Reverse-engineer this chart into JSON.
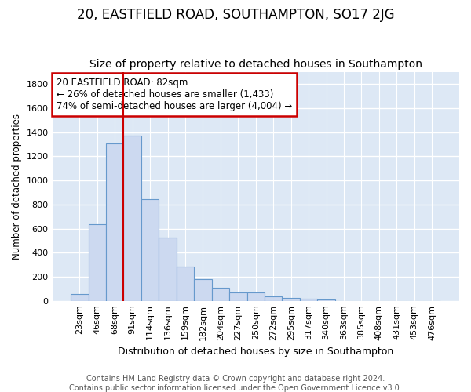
{
  "title": "20, EASTFIELD ROAD, SOUTHAMPTON, SO17 2JG",
  "subtitle": "Size of property relative to detached houses in Southampton",
  "xlabel": "Distribution of detached houses by size in Southampton",
  "ylabel": "Number of detached properties",
  "footnote1": "Contains HM Land Registry data © Crown copyright and database right 2024.",
  "footnote2": "Contains public sector information licensed under the Open Government Licence v3.0.",
  "bar_color": "#ccd9f0",
  "bar_edge_color": "#6699cc",
  "background_color": "#dde8f5",
  "fig_background": "#ffffff",
  "grid_color": "#ffffff",
  "vline_color": "#cc0000",
  "annotation_box_edge": "#cc0000",
  "annotation_text_line1": "20 EASTFIELD ROAD: 82sqm",
  "annotation_text_line2": "← 26% of detached houses are smaller (1,433)",
  "annotation_text_line3": "74% of semi-detached houses are larger (4,004) →",
  "bins": [
    "23sqm",
    "46sqm",
    "68sqm",
    "91sqm",
    "114sqm",
    "136sqm",
    "159sqm",
    "182sqm",
    "204sqm",
    "227sqm",
    "250sqm",
    "272sqm",
    "295sqm",
    "317sqm",
    "340sqm",
    "363sqm",
    "385sqm",
    "408sqm",
    "431sqm",
    "453sqm",
    "476sqm"
  ],
  "values": [
    57,
    638,
    1305,
    1375,
    843,
    525,
    285,
    183,
    108,
    68,
    68,
    35,
    25,
    17,
    10,
    0,
    0,
    0,
    0,
    0,
    0
  ],
  "ylim": [
    0,
    1900
  ],
  "yticks": [
    0,
    200,
    400,
    600,
    800,
    1000,
    1200,
    1400,
    1600,
    1800
  ],
  "vline_x_pos": 2.5,
  "title_fontsize": 12,
  "subtitle_fontsize": 10,
  "xlabel_fontsize": 9,
  "ylabel_fontsize": 8.5,
  "tick_fontsize": 8,
  "annotation_fontsize": 8.5,
  "footnote_fontsize": 7
}
